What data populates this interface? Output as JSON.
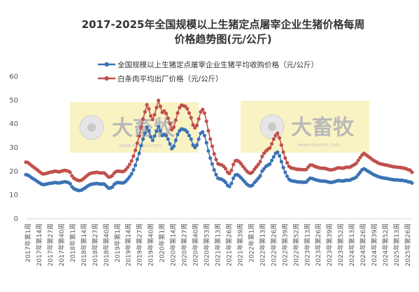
{
  "chart_data": {
    "type": "line",
    "title_line1": "2017-2025年全国规模以上生猪定点屠宰企业生猪价格每周",
    "title_line2": "价格趋势图(元/公斤)",
    "ylim": [
      0,
      60
    ],
    "yticks": [
      0,
      10,
      20,
      30,
      40,
      50,
      60
    ],
    "grid": false,
    "legend_position": "top-right",
    "x_labels": [
      "2017年第1周",
      "2017年第14周",
      "2017年第27周",
      "2017年第40周",
      "2018年第1周",
      "2018年第14周",
      "2018年第27周",
      "2018年第40周",
      "2019年第1周",
      "2019年第14周",
      "2019年第27周",
      "2019年第40周",
      "2020年第1周",
      "2020年第14周",
      "2020年第27周",
      "2020年第40周",
      "2020年第53周",
      "2021年第13周",
      "2021年第26周",
      "2021年第39周",
      "2022年第1周",
      "2022年第13周",
      "2022年第26周",
      "2022年第39周",
      "2022年第52周",
      "2023年第13周",
      "2023年第26周",
      "2023年第39周",
      "2023年第52周",
      "2024年第13周",
      "2024年第26周",
      "2024年第39周",
      "2024年第52周",
      "2025年第13周",
      "2025年第26周"
    ],
    "series": [
      {
        "name": "全国规模以上生猪定点屠宰企业生猪平均收购价格（元/公斤）",
        "color": "#3b73b5",
        "values": [
          18.5,
          18.3,
          17.8,
          17.2,
          16.7,
          16.2,
          15.6,
          15.1,
          14.6,
          14.3,
          14.4,
          14.6,
          14.8,
          14.9,
          15.0,
          15.2,
          15.1,
          15.0,
          15.1,
          15.3,
          15.5,
          15.4,
          15.2,
          14.7,
          13.4,
          12.6,
          12.2,
          11.9,
          11.8,
          12.0,
          12.5,
          13.0,
          13.6,
          14.1,
          14.4,
          14.6,
          14.7,
          14.8,
          14.6,
          14.5,
          14.6,
          14.4,
          13.6,
          12.8,
          12.9,
          13.3,
          14.4,
          15.0,
          15.2,
          15.1,
          15.0,
          15.1,
          15.7,
          16.6,
          17.6,
          18.8,
          20.5,
          22.5,
          25.0,
          27.5,
          30.8,
          33.5,
          36.0,
          38.5,
          37.0,
          34.5,
          33.0,
          34.8,
          36.8,
          38.8,
          37.0,
          35.0,
          35.5,
          35.0,
          33.5,
          31.5,
          29.5,
          30.5,
          33.0,
          35.5,
          37.0,
          37.8,
          37.6,
          37.3,
          36.5,
          35.0,
          33.5,
          31.0,
          30.0,
          31.0,
          33.5,
          36.0,
          36.5,
          35.0,
          32.0,
          28.5,
          25.5,
          23.0,
          20.5,
          18.5,
          17.0,
          16.7,
          16.5,
          16.0,
          15.2,
          14.0,
          13.5,
          14.8,
          17.0,
          18.3,
          18.5,
          18.0,
          17.2,
          16.3,
          15.4,
          14.5,
          13.9,
          13.7,
          14.1,
          15.2,
          16.0,
          17.0,
          18.0,
          20.0,
          21.0,
          22.0,
          22.5,
          23.0,
          24.5,
          26.0,
          27.5,
          28.0,
          26.5,
          24.0,
          21.5,
          19.5,
          17.8,
          16.5,
          16.0,
          15.8,
          15.7,
          15.5,
          15.4,
          15.4,
          15.3,
          15.3,
          15.4,
          16.3,
          17.0,
          16.9,
          16.6,
          16.3,
          16.1,
          15.9,
          15.8,
          15.8,
          15.7,
          15.5,
          15.3,
          15.2,
          15.4,
          15.6,
          15.9,
          16.0,
          15.9,
          15.8,
          16.0,
          16.2,
          16.1,
          16.3,
          16.7,
          17.0,
          17.5,
          18.5,
          19.5,
          20.5,
          21.0,
          20.5,
          20.0,
          19.5,
          19.0,
          18.5,
          18.2,
          17.8,
          17.5,
          17.3,
          17.1,
          17.0,
          16.9,
          16.7,
          16.5,
          16.4,
          16.3,
          16.3,
          16.2,
          16.1,
          16.1,
          15.9,
          15.8,
          15.5,
          15.4,
          15.0
        ]
      },
      {
        "name": "白条肉平均出厂价格（元/公斤）",
        "color": "#c0504d",
        "values": [
          23.8,
          23.6,
          23.0,
          22.3,
          21.7,
          21.1,
          20.5,
          19.8,
          19.2,
          18.8,
          18.9,
          19.1,
          19.4,
          19.6,
          19.7,
          20.0,
          19.9,
          19.7,
          19.8,
          20.1,
          20.3,
          20.2,
          20.0,
          19.5,
          18.0,
          17.0,
          16.5,
          16.1,
          16.0,
          16.2,
          16.8,
          17.5,
          18.2,
          18.8,
          19.1,
          19.3,
          19.4,
          19.5,
          19.3,
          19.2,
          19.3,
          19.1,
          18.3,
          17.5,
          17.6,
          18.1,
          19.2,
          19.8,
          20.0,
          19.9,
          19.8,
          19.9,
          20.6,
          21.6,
          22.8,
          24.3,
          26.3,
          28.8,
          31.8,
          34.8,
          38.5,
          42.0,
          45.0,
          48.0,
          46.3,
          43.3,
          41.8,
          43.8,
          46.8,
          49.8,
          47.3,
          44.8,
          45.3,
          44.3,
          42.3,
          40.0,
          37.5,
          38.5,
          41.5,
          44.5,
          46.8,
          47.8,
          47.6,
          47.3,
          46.3,
          44.5,
          42.5,
          39.5,
          38.3,
          39.3,
          42.0,
          45.0,
          46.0,
          44.5,
          41.0,
          37.0,
          33.5,
          30.5,
          27.3,
          24.9,
          23.1,
          22.8,
          22.6,
          22.0,
          21.0,
          19.5,
          19.0,
          20.3,
          22.8,
          24.3,
          24.5,
          24.0,
          23.1,
          22.0,
          21.0,
          20.0,
          19.3,
          19.1,
          19.6,
          20.8,
          21.8,
          22.8,
          24.0,
          26.2,
          27.5,
          28.5,
          29.2,
          29.8,
          31.5,
          33.5,
          35.0,
          36.0,
          34.0,
          31.0,
          28.0,
          25.5,
          23.5,
          22.0,
          21.4,
          21.2,
          21.0,
          20.8,
          20.7,
          20.7,
          20.6,
          20.6,
          20.7,
          21.7,
          22.6,
          22.5,
          22.2,
          21.8,
          21.6,
          21.3,
          21.2,
          21.2,
          21.1,
          20.8,
          20.6,
          20.5,
          20.7,
          20.9,
          21.3,
          21.4,
          21.3,
          21.2,
          21.4,
          21.7,
          21.6,
          21.8,
          22.3,
          22.7,
          23.3,
          24.5,
          25.7,
          26.8,
          27.5,
          26.9,
          26.3,
          25.7,
          25.1,
          24.5,
          24.1,
          23.6,
          23.2,
          23.0,
          22.8,
          22.6,
          22.5,
          22.3,
          22.1,
          21.9,
          21.8,
          21.7,
          21.6,
          21.5,
          21.4,
          21.2,
          21.0,
          20.6,
          20.4,
          19.5
        ]
      }
    ]
  },
  "watermark": {
    "brand": "大畜牧",
    "url": "www.dxumu.com"
  }
}
